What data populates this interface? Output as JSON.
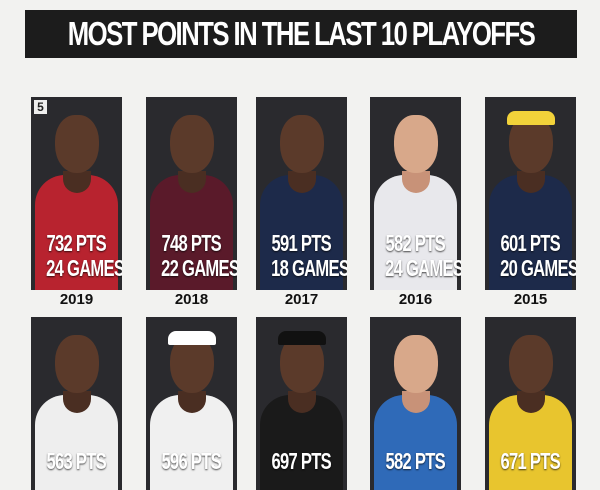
{
  "title": "MOST POINTS IN THE LAST 10 PLAYOFFS",
  "logo": "5",
  "top_row": [
    {
      "pts": "732 PTS",
      "games": "24 GAMES",
      "year": "2019",
      "jersey": "#b8232f",
      "skin": "dark"
    },
    {
      "pts": "748 PTS",
      "games": "22 GAMES",
      "year": "2018",
      "jersey": "#5a1a2a",
      "skin": "dark"
    },
    {
      "pts": "591 PTS",
      "games": "18 GAMES",
      "year": "2017",
      "jersey": "#1d2a4a",
      "skin": "dark"
    },
    {
      "pts": "582 PTS",
      "games": "24 GAMES",
      "year": "2016",
      "jersey": "#e8e8ec",
      "skin": "light"
    },
    {
      "pts": "601 PTS",
      "games": "20 GAMES",
      "year": "2015",
      "jersey": "#1d2a4a",
      "skin": "dark",
      "band": "#f2d23a"
    }
  ],
  "bottom_row": [
    {
      "pts": "563 PTS",
      "jersey": "#eeeeee",
      "skin": "dark"
    },
    {
      "pts": "596 PTS",
      "jersey": "#f0f0f0",
      "skin": "dark",
      "band": "#ffffff"
    },
    {
      "pts": "697 PTS",
      "jersey": "#1a1a1a",
      "skin": "dark",
      "band": "#111111"
    },
    {
      "pts": "582 PTS",
      "jersey": "#2f6ab8",
      "skin": "light"
    },
    {
      "pts": "671 PTS",
      "jersey": "#e8c52e",
      "skin": "dark"
    }
  ]
}
